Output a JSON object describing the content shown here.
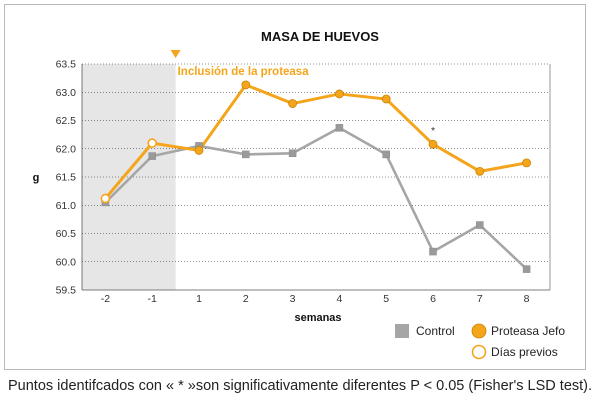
{
  "chart_data": {
    "type": "line",
    "title": "MASA DE HUEVOS",
    "xlabel": "semanas",
    "ylabel": "g",
    "categories": [
      "-2",
      "-1",
      "1",
      "2",
      "3",
      "4",
      "5",
      "6",
      "7",
      "8"
    ],
    "ylim": [
      59.5,
      63.5
    ],
    "yticks": [
      "59.5",
      "60.0",
      "60.5",
      "61.0",
      "61.5",
      "62.0",
      "62.5",
      "63.0",
      "63.5"
    ],
    "series": [
      {
        "name": "Control",
        "color": "#a6a6a6",
        "values": [
          61.05,
          61.87,
          62.05,
          61.9,
          61.92,
          62.37,
          61.9,
          60.18,
          60.65,
          59.87
        ]
      },
      {
        "name": "Proteasa Jefo",
        "color": "#f4a51c",
        "values": [
          61.12,
          62.1,
          61.97,
          63.13,
          62.8,
          62.97,
          62.88,
          62.08,
          61.6,
          61.75
        ]
      }
    ],
    "previous_days_label": "Días previos",
    "previous_days_categories": [
      "-2",
      "-1"
    ],
    "annotation": {
      "text": "Inclusión de la proteasa",
      "color": "#f4a51c"
    },
    "significance_marker": {
      "category": "6",
      "symbol": "*"
    },
    "grid": true,
    "legend_position": "bottom-right"
  },
  "caption": "Puntos identifcados con « * »son significativamente diferentes P < 0.05 (Fisher's LSD test)."
}
